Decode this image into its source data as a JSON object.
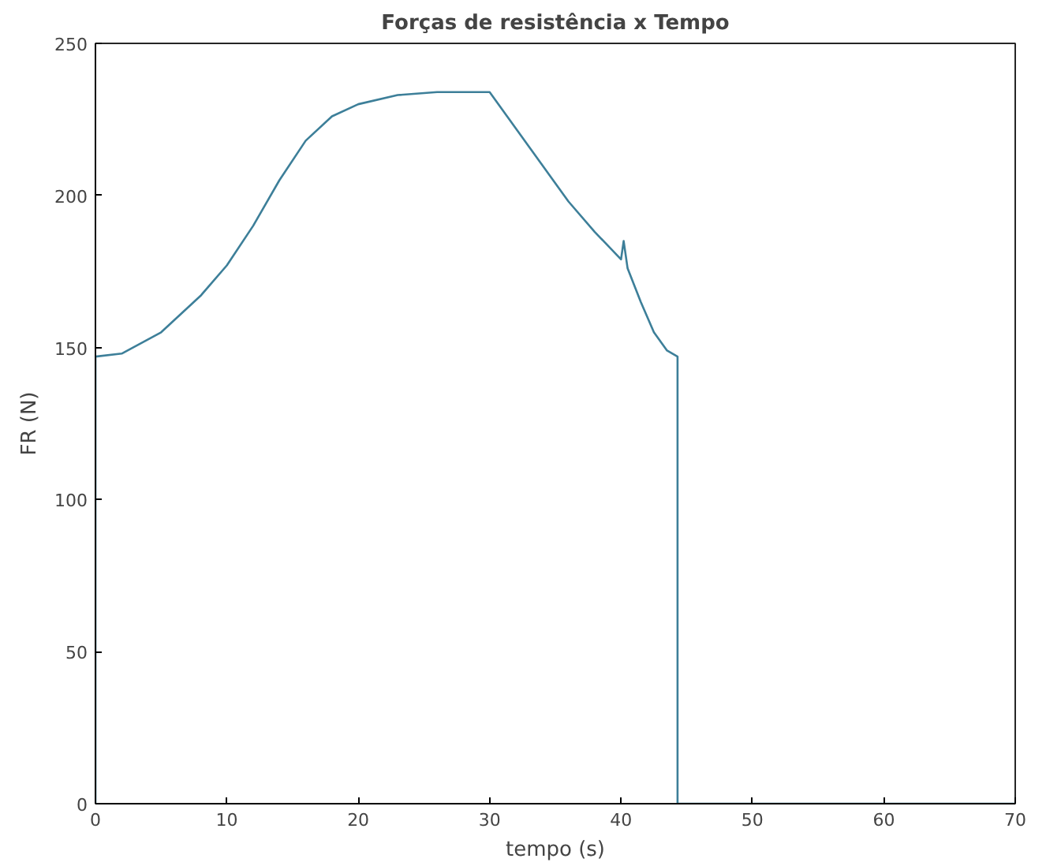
{
  "chart_data": {
    "type": "line",
    "title": "Forças de resistência x Tempo",
    "xlabel": "tempo (s)",
    "ylabel": "FR (N)",
    "x": [
      0,
      0,
      2,
      5,
      8,
      10,
      12,
      14,
      16,
      18,
      20,
      23,
      26,
      30,
      32,
      34,
      36,
      38,
      40,
      40.2,
      40.5,
      41.5,
      42.5,
      43.5,
      44.3,
      44.3,
      70
    ],
    "series": [
      {
        "color": "#3d7f99",
        "values": [
          0,
          147,
          148,
          155,
          167,
          177,
          190,
          205,
          218,
          226,
          230,
          233,
          234,
          234,
          222,
          210,
          198,
          188,
          179,
          185,
          176,
          165,
          155,
          149,
          147,
          0,
          0
        ]
      }
    ],
    "xlim": [
      0,
      70
    ],
    "ylim": [
      0,
      250
    ],
    "xticks": [
      0,
      10,
      20,
      30,
      40,
      50,
      60,
      70
    ],
    "yticks": [
      0,
      50,
      100,
      150,
      200,
      250
    ],
    "grid": false,
    "marker": "none",
    "line_style": "solid"
  }
}
